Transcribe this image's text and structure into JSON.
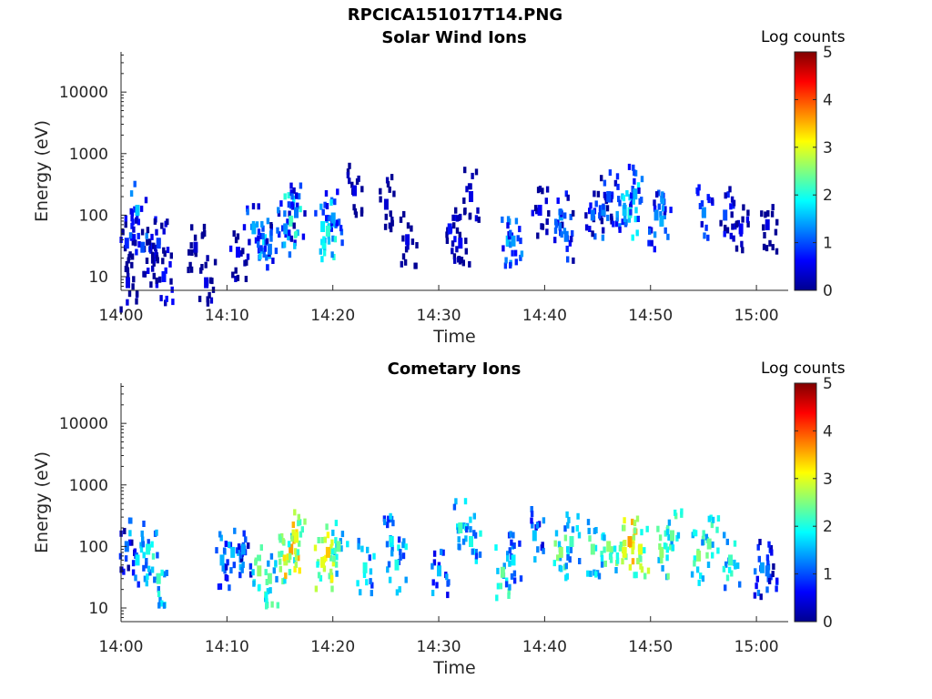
{
  "figure_title": "RPCICA151017T14.PNG",
  "chart_data": [
    {
      "type": "heatmap",
      "title": "Solar Wind Ions",
      "xlabel": "Time",
      "ylabel": "Energy (eV)",
      "x_ticks": [
        "14:00",
        "14:10",
        "14:20",
        "14:30",
        "14:40",
        "14:50",
        "15:00"
      ],
      "y_ticks": [
        "10",
        "100",
        "1000",
        "10000"
      ],
      "y_scale": "log",
      "ylim": [
        6,
        45000
      ],
      "colorbar": {
        "label": "Log counts",
        "range": [
          0,
          5
        ],
        "ticks": [
          "0",
          "1",
          "2",
          "3",
          "4",
          "5"
        ],
        "colormap": "jet"
      },
      "series": [
        {
          "t": [
            0.5,
            0.6,
            1.5,
            2.0
          ],
          "e": [
            35,
            8,
            120,
            30
          ],
          "v": [
            0.8,
            0.5,
            1.6,
            1.0
          ]
        },
        {
          "t": [
            3.0,
            3.5,
            4.0
          ],
          "e": [
            20,
            35,
            10
          ],
          "v": [
            0.6,
            0.9,
            0.7
          ]
        },
        {
          "t": [
            7.0,
            8.0
          ],
          "e": [
            30,
            8
          ],
          "v": [
            0.4,
            0.5
          ]
        },
        {
          "t": [
            11.0,
            12.5,
            13.5,
            14.0
          ],
          "e": [
            25,
            60,
            40,
            28
          ],
          "v": [
            0.6,
            1.5,
            1.8,
            1.2
          ]
        },
        {
          "t": [
            15.5,
            16.0,
            16.5
          ],
          "e": [
            60,
            80,
            110
          ],
          "v": [
            1.4,
            2.2,
            1.2
          ]
        },
        {
          "t": [
            19.0,
            19.5,
            20.0
          ],
          "e": [
            65,
            55,
            90
          ],
          "v": [
            1.8,
            2.1,
            1.4
          ]
        },
        {
          "t": [
            22.0,
            25.0,
            27.0
          ],
          "e": [
            250,
            150,
            40
          ],
          "v": [
            0.5,
            0.4,
            0.5
          ]
        },
        {
          "t": [
            31.0,
            32.0,
            33.0
          ],
          "e": [
            60,
            35,
            200
          ],
          "v": [
            0.7,
            0.6,
            0.5
          ]
        },
        {
          "t": [
            36.5,
            37.0
          ],
          "e": [
            38,
            38
          ],
          "v": [
            1.6,
            1.4
          ]
        },
        {
          "t": [
            39.5,
            41.5,
            42.0
          ],
          "e": [
            120,
            100,
            45
          ],
          "v": [
            0.6,
            1.4,
            1.2
          ]
        },
        {
          "t": [
            44.5,
            45.5,
            46.0
          ],
          "e": [
            100,
            120,
            200
          ],
          "v": [
            1.2,
            1.3,
            1.0
          ]
        },
        {
          "t": [
            47.5,
            48.0,
            48.5
          ],
          "e": [
            120,
            110,
            220
          ],
          "v": [
            1.6,
            2.0,
            1.5
          ]
        },
        {
          "t": [
            50.5,
            51.0,
            55.0
          ],
          "e": [
            100,
            80,
            110
          ],
          "v": [
            1.3,
            1.5,
            1.3
          ]
        },
        {
          "t": [
            57.0,
            58.5,
            61.0
          ],
          "e": [
            100,
            60,
            70
          ],
          "v": [
            1.0,
            0.6,
            0.5
          ]
        }
      ]
    },
    {
      "type": "heatmap",
      "title": "Cometary Ions",
      "xlabel": "Time",
      "ylabel": "Energy (eV)",
      "x_ticks": [
        "14:00",
        "14:10",
        "14:20",
        "14:30",
        "14:40",
        "14:50",
        "15:00"
      ],
      "y_ticks": [
        "10",
        "100",
        "1000",
        "10000"
      ],
      "y_scale": "log",
      "ylim": [
        6,
        45000
      ],
      "colorbar": {
        "label": "Log counts",
        "range": [
          0,
          5
        ],
        "ticks": [
          "0",
          "1",
          "2",
          "3",
          "4",
          "5"
        ],
        "colormap": "jet"
      },
      "series": [
        {
          "t": [
            0.5,
            1.5,
            2.5,
            3.5
          ],
          "e": [
            100,
            60,
            90,
            30
          ],
          "v": [
            1.2,
            1.8,
            2.0,
            2.2
          ]
        },
        {
          "t": [
            9.5,
            10.5,
            11.5
          ],
          "e": [
            60,
            80,
            90
          ],
          "v": [
            1.5,
            1.6,
            1.4
          ]
        },
        {
          "t": [
            13.0,
            14.0
          ],
          "e": [
            40,
            30
          ],
          "v": [
            2.6,
            2.4
          ]
        },
        {
          "t": [
            15.5,
            16.0,
            16.5
          ],
          "e": [
            60,
            90,
            140
          ],
          "v": [
            2.8,
            3.6,
            3.0
          ]
        },
        {
          "t": [
            19.0,
            19.5,
            20.5
          ],
          "e": [
            55,
            80,
            100
          ],
          "v": [
            3.0,
            3.4,
            2.4
          ]
        },
        {
          "t": [
            23.0,
            25.5,
            26.0
          ],
          "e": [
            45,
            120,
            50
          ],
          "v": [
            2.0,
            1.8,
            2.0
          ]
        },
        {
          "t": [
            30.0,
            32.0,
            33.0
          ],
          "e": [
            40,
            200,
            120
          ],
          "v": [
            1.6,
            2.2,
            2.0
          ]
        },
        {
          "t": [
            36.0,
            37.0,
            39.0
          ],
          "e": [
            38,
            60,
            150
          ],
          "v": [
            2.4,
            1.8,
            1.6
          ]
        },
        {
          "t": [
            41.5,
            42.5,
            44.5
          ],
          "e": [
            80,
            120,
            90
          ],
          "v": [
            2.6,
            2.2,
            2.4
          ]
        },
        {
          "t": [
            46.0,
            47.5,
            48.0
          ],
          "e": [
            100,
            80,
            120
          ],
          "v": [
            2.6,
            3.0,
            3.6
          ]
        },
        {
          "t": [
            49.0,
            51.0,
            52.0
          ],
          "e": [
            90,
            80,
            150
          ],
          "v": [
            3.0,
            2.6,
            2.4
          ]
        },
        {
          "t": [
            54.5,
            55.5,
            57.5
          ],
          "e": [
            70,
            110,
            60
          ],
          "v": [
            2.6,
            2.4,
            2.2
          ]
        },
        {
          "t": [
            60.5,
            61.0
          ],
          "e": [
            45,
            40
          ],
          "v": [
            1.4,
            1.2
          ]
        }
      ]
    }
  ]
}
